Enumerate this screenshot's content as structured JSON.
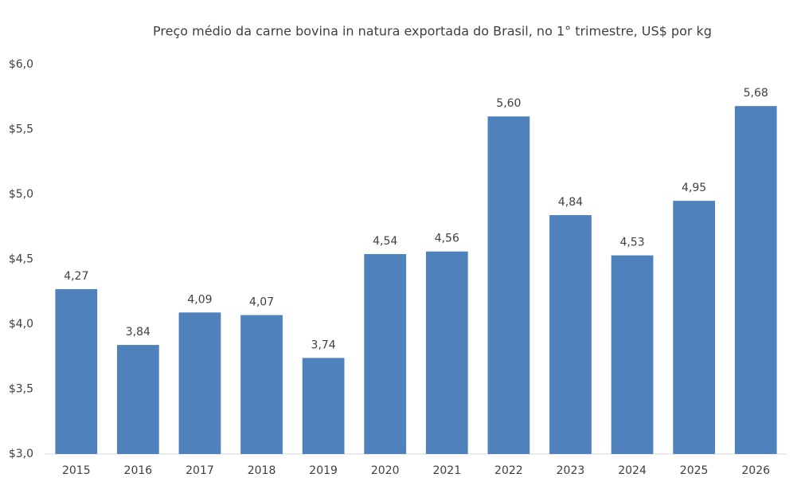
{
  "chart_data": {
    "type": "bar",
    "title": "Preço médio da carne bovina in natura exportada do Brasil, no 1° trimestre, US$ por kg",
    "categories": [
      "2015",
      "2016",
      "2017",
      "2018",
      "2019",
      "2020",
      "2021",
      "2022",
      "2023",
      "2024",
      "2025",
      "2026"
    ],
    "values": [
      4.27,
      3.84,
      4.09,
      4.07,
      3.74,
      4.54,
      4.56,
      5.6,
      4.84,
      4.53,
      4.95,
      5.68
    ],
    "value_labels": [
      "4,27",
      "3,84",
      "4,09",
      "4,07",
      "3,74",
      "4,54",
      "4,56",
      "5,60",
      "4,84",
      "4,53",
      "4,95",
      "5,68"
    ],
    "color": "#4f81bd",
    "ylim": [
      3,
      6
    ],
    "yticks": [
      {
        "value": 3,
        "label": "$3,0"
      },
      {
        "value": 3.5,
        "label": "$3,5"
      },
      {
        "value": 4,
        "label": "$4,0"
      },
      {
        "value": 4.5,
        "label": "$4,5"
      },
      {
        "value": 5,
        "label": "$5,0"
      },
      {
        "value": 5.5,
        "label": "$5,5"
      },
      {
        "value": 6,
        "label": "$6,0"
      }
    ],
    "grid": false
  }
}
